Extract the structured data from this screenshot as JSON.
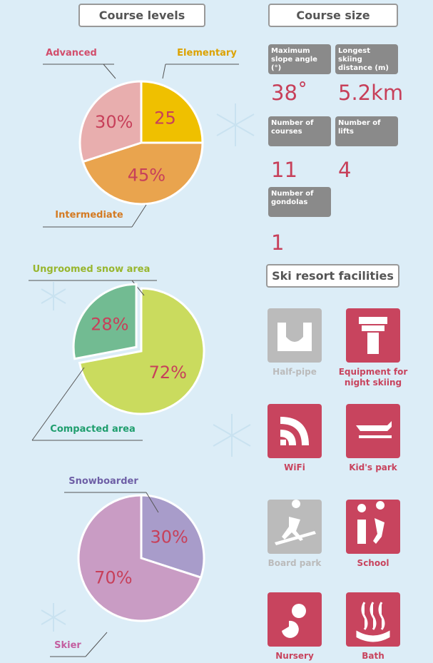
{
  "chart_data": [
    {
      "type": "pie",
      "title": "Course levels",
      "categories": [
        "Elementary",
        "Intermediate",
        "Advanced"
      ],
      "values": [
        25,
        45,
        30
      ],
      "value_labels": [
        "25",
        "45%",
        "30%"
      ],
      "colors": [
        "#efc000",
        "#e9a44e",
        "#e8aeae"
      ],
      "label_colors": [
        "#dca200",
        "#d47a22",
        "#d24e6c"
      ]
    },
    {
      "type": "pie",
      "categories": [
        "Ungroomed snow area",
        "Compacted area"
      ],
      "values": [
        72,
        28
      ],
      "value_labels": [
        "72%",
        "28%"
      ],
      "colors": [
        "#cadb5e",
        "#72bb92"
      ],
      "label_colors": [
        "#98b62e",
        "#1f9e6e"
      ]
    },
    {
      "type": "pie",
      "categories": [
        "Snowboarder",
        "Skier"
      ],
      "values": [
        30,
        70
      ],
      "value_labels": [
        "30%",
        "70%"
      ],
      "colors": [
        "#a89cca",
        "#c99cc4"
      ],
      "label_colors": [
        "#6e5fa6",
        "#c35ea0"
      ]
    }
  ],
  "course_size": {
    "title": "Course size",
    "items": [
      {
        "label": "Maximum slope angle (°)",
        "value": "38˚"
      },
      {
        "label": "Longest skiing distance (m)",
        "value": "5.2km"
      },
      {
        "label": "Number of courses",
        "value": "11"
      },
      {
        "label": "Number of lifts",
        "value": "4"
      },
      {
        "label": "Number of gondolas",
        "value": "1"
      }
    ]
  },
  "facilities": {
    "title": "Ski resort facilities",
    "items": [
      {
        "label": "Half-pipe",
        "available": false
      },
      {
        "label": "Equipment for night skiing",
        "available": true
      },
      {
        "label": "WiFi",
        "available": true
      },
      {
        "label": "Kid's park",
        "available": true
      },
      {
        "label": "Board park",
        "available": false
      },
      {
        "label": "School",
        "available": true
      },
      {
        "label": "Nursery",
        "available": true
      },
      {
        "label": "Bath",
        "available": true
      }
    ]
  }
}
